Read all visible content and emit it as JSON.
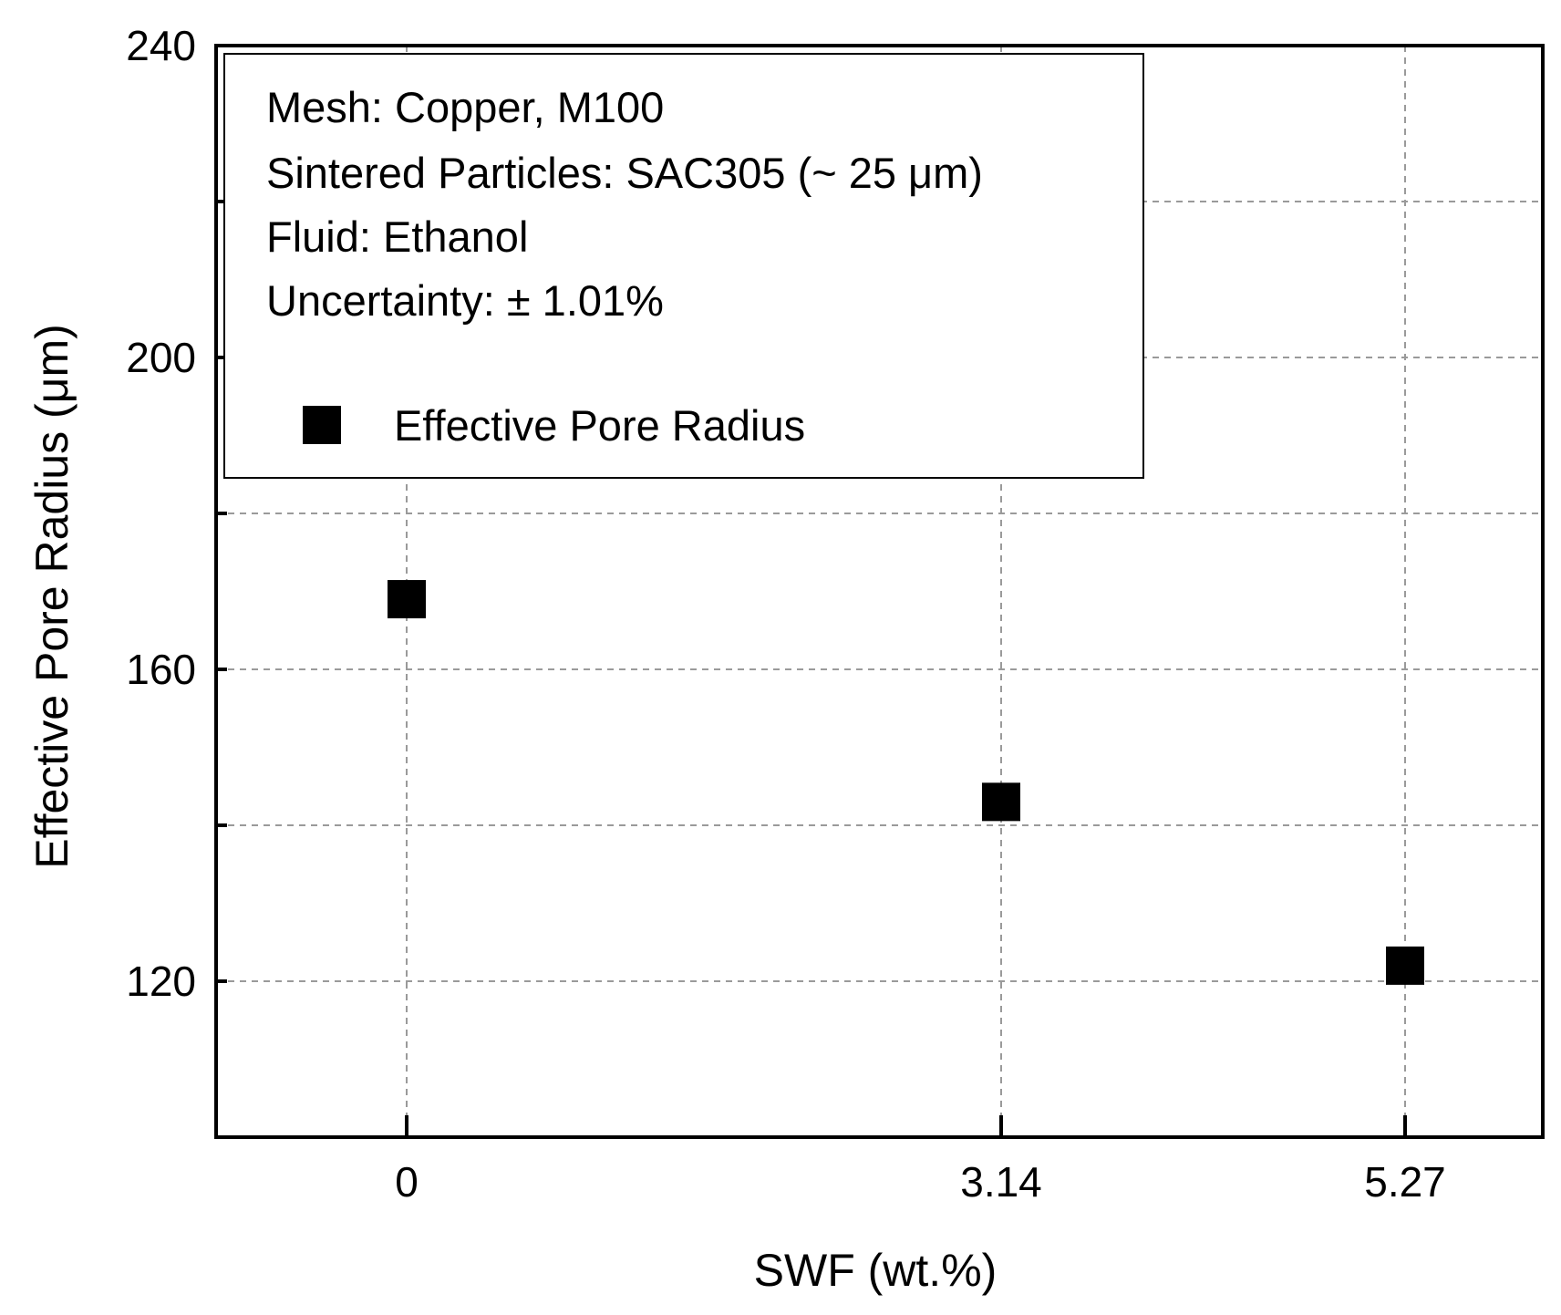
{
  "chart_data": {
    "type": "scatter",
    "title": "",
    "xlabel": "SWF (wt.%)",
    "ylabel": "Effective Pore Radius (μm)",
    "ylim": [
      100,
      240
    ],
    "y_ticks": [
      120,
      160,
      200,
      240
    ],
    "y_minor_ticks": [
      140,
      180,
      220
    ],
    "categories": [
      "0",
      "3.14",
      "5.27"
    ],
    "x": [
      0,
      3.14,
      5.27
    ],
    "grid": true,
    "legend_position": "top-left",
    "annotations": [
      "Mesh: Copper, M100",
      "Sintered Particles: SAC305 (~ 25 μm)",
      "Fluid: Ethanol",
      "Uncertainty: ± 1.01%"
    ],
    "series": [
      {
        "name": "Effective Pore Radius",
        "marker": "square",
        "color": "#000000",
        "values": [
          169,
          143,
          122
        ]
      }
    ]
  }
}
